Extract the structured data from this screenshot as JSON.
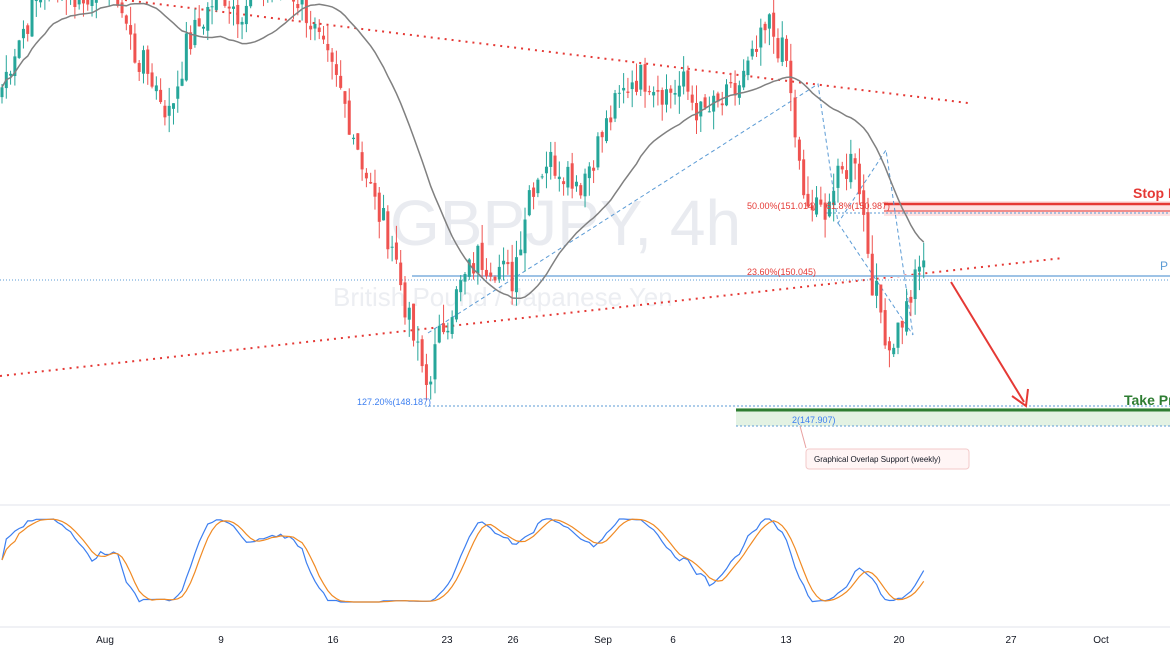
{
  "watermark": {
    "symbol": "GBPJPY, 4h",
    "name": "British Pound / Japanese Yen"
  },
  "colors": {
    "up": "#26a69a",
    "down": "#ef5350",
    "ma": "#808080",
    "red": "#e53935",
    "green": "#2e7d32",
    "blue": "#5b9bd5",
    "stoch_k": "#3d7ff0",
    "stoch_d": "#f08a24"
  },
  "chart_data": {
    "type": "candlestick",
    "x_ticks": [
      "Aug",
      "9",
      "16",
      "23",
      "26",
      "Sep",
      "6",
      "13",
      "20",
      "27",
      "Oct"
    ],
    "price_path": [
      152.4,
      153.1,
      153.6,
      154.1,
      153.9,
      153.7,
      154.2,
      153.8,
      153.0,
      152.7,
      152.2,
      153.1,
      153.5,
      153.9,
      153.6,
      153.8,
      153.9,
      153.9,
      153.6,
      153.0,
      152.5,
      151.8,
      151.0,
      150.5,
      149.4,
      148.6,
      149.4,
      149.9,
      150.3,
      150.2,
      150.0,
      151.2,
      151.6,
      151.5,
      151.3,
      151.8,
      152.3,
      152.7,
      152.7,
      152.5,
      152.6,
      152.2,
      152.3,
      152.5,
      152.9,
      153.4,
      152.9,
      151.0,
      150.9,
      151.3,
      151.7,
      150.0,
      149.1,
      149.6,
      150.3
    ],
    "levels": [
      {
        "label": "50.00%(151.014)",
        "price": 151.014,
        "color": "red"
      },
      {
        "label": "61.8%(150.987)",
        "price": 150.987,
        "color": "red"
      },
      {
        "label": "23.60%(150.045)",
        "price": 150.045,
        "color": "red"
      },
      {
        "label": "127.20%(148.187)",
        "price": 148.187,
        "color": "blue"
      },
      {
        "label": "2(147.907)",
        "price": 147.907,
        "color": "blue"
      }
    ],
    "zones": [
      {
        "label": "Stop L",
        "price": 151.014,
        "color": "red"
      },
      {
        "label": "P",
        "price": 150.045,
        "color": "blue"
      },
      {
        "label": "Take Pr",
        "price": 147.907,
        "color": "green"
      }
    ],
    "annotation": "Graphical Overlap Support (weekly)"
  }
}
